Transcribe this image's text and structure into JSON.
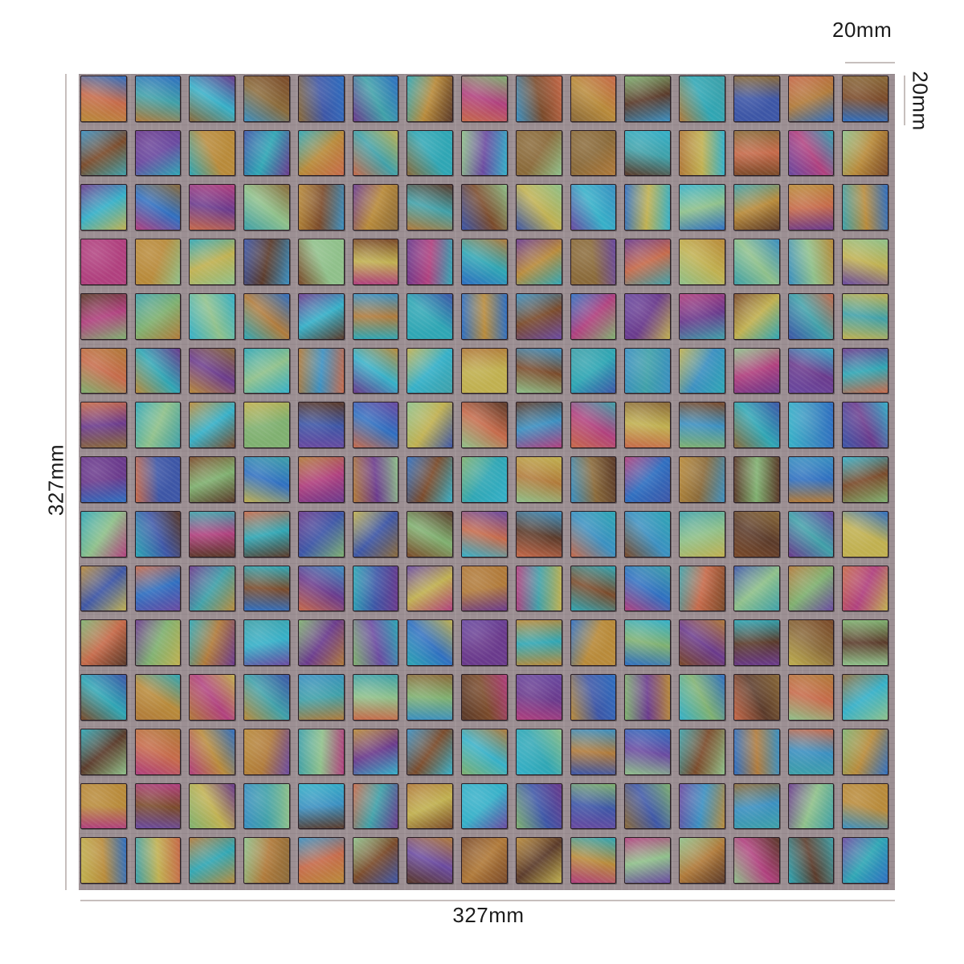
{
  "product": {
    "name": "Iridescent glass mosaic tile sheet",
    "grid_rows": 15,
    "grid_cols": 15,
    "grout_color": "#9c8f93"
  },
  "dimensions": {
    "sheet_width_label": "327mm",
    "sheet_height_label": "327mm",
    "tile_width_label": "20mm",
    "tile_height_label": "20mm",
    "line_color": "#c7bfbd"
  },
  "palette": {
    "teal": [
      "#2fa6b4",
      "#8fc08a",
      "#3b8fc0"
    ],
    "purple": [
      "#6a3a8c",
      "#b0407e",
      "#3d56a6"
    ],
    "gold": [
      "#b88a3a",
      "#c66a4a",
      "#8a6a3a"
    ],
    "blue": [
      "#2f6fc0",
      "#36b0c8",
      "#6a4aa0"
    ],
    "green": [
      "#7fb070",
      "#3fa0a8",
      "#c0b050"
    ],
    "bronze": [
      "#7a4a2a",
      "#b07a3a",
      "#5a3a2a"
    ]
  }
}
